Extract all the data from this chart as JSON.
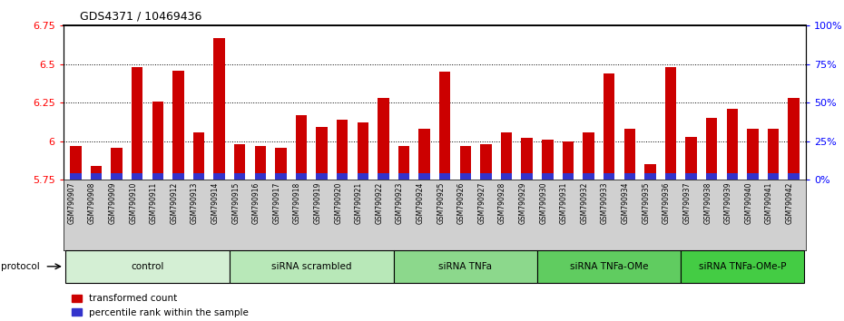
{
  "title": "GDS4371 / 10469436",
  "samples": [
    "GSM790907",
    "GSM790908",
    "GSM790909",
    "GSM790910",
    "GSM790911",
    "GSM790912",
    "GSM790913",
    "GSM790914",
    "GSM790915",
    "GSM790916",
    "GSM790917",
    "GSM790918",
    "GSM790919",
    "GSM790920",
    "GSM790921",
    "GSM790922",
    "GSM790923",
    "GSM790924",
    "GSM790925",
    "GSM790926",
    "GSM790927",
    "GSM790928",
    "GSM790929",
    "GSM790930",
    "GSM790931",
    "GSM790932",
    "GSM790933",
    "GSM790934",
    "GSM790935",
    "GSM790936",
    "GSM790937",
    "GSM790938",
    "GSM790939",
    "GSM790940",
    "GSM790941",
    "GSM790942"
  ],
  "red_values": [
    5.97,
    5.84,
    5.96,
    6.48,
    6.26,
    6.46,
    6.06,
    6.67,
    5.98,
    5.97,
    5.96,
    6.17,
    6.09,
    6.14,
    6.12,
    6.28,
    5.97,
    6.08,
    6.45,
    5.97,
    5.98,
    6.06,
    6.02,
    6.01,
    6.0,
    6.06,
    6.44,
    6.08,
    5.85,
    6.48,
    6.03,
    6.15,
    6.21,
    6.08,
    6.08,
    6.28
  ],
  "blue_percentiles": [
    7,
    14,
    12,
    8,
    10,
    9,
    9,
    9,
    9,
    9,
    9,
    9,
    9,
    9,
    9,
    9,
    9,
    10,
    9,
    9,
    9,
    9,
    9,
    9,
    9,
    9,
    10,
    9,
    9,
    10,
    9,
    9,
    9,
    9,
    9,
    12
  ],
  "ylim_left": [
    5.75,
    6.75
  ],
  "ylim_right": [
    0,
    100
  ],
  "yticks_left": [
    5.75,
    6.0,
    6.25,
    6.5,
    6.75
  ],
  "ytick_labels_left": [
    "5.75",
    "6",
    "6.25",
    "6.5",
    "6.75"
  ],
  "yticks_right": [
    0,
    25,
    50,
    75,
    100
  ],
  "ytick_labels_right": [
    "0%",
    "25%",
    "50%",
    "75%",
    "100%"
  ],
  "protocols": [
    {
      "label": "control",
      "start": 0,
      "end": 7,
      "color": "#d4efd4"
    },
    {
      "label": "siRNA scrambled",
      "start": 8,
      "end": 15,
      "color": "#b8e8b8"
    },
    {
      "label": "siRNA TNFa",
      "start": 16,
      "end": 22,
      "color": "#8cd88c"
    },
    {
      "label": "siRNA TNFa-OMe",
      "start": 23,
      "end": 29,
      "color": "#60cc60"
    },
    {
      "label": "siRNA TNFa-OMe-P",
      "start": 30,
      "end": 35,
      "color": "#44cc44"
    }
  ],
  "bar_width": 0.55,
  "red_color": "#cc0000",
  "blue_color": "#3333cc",
  "baseline": 5.75,
  "tick_bg_color": "#d0d0d0",
  "plot_bg": "#ffffff",
  "grid_color": "#000000",
  "grid_linestyle": "dotted"
}
